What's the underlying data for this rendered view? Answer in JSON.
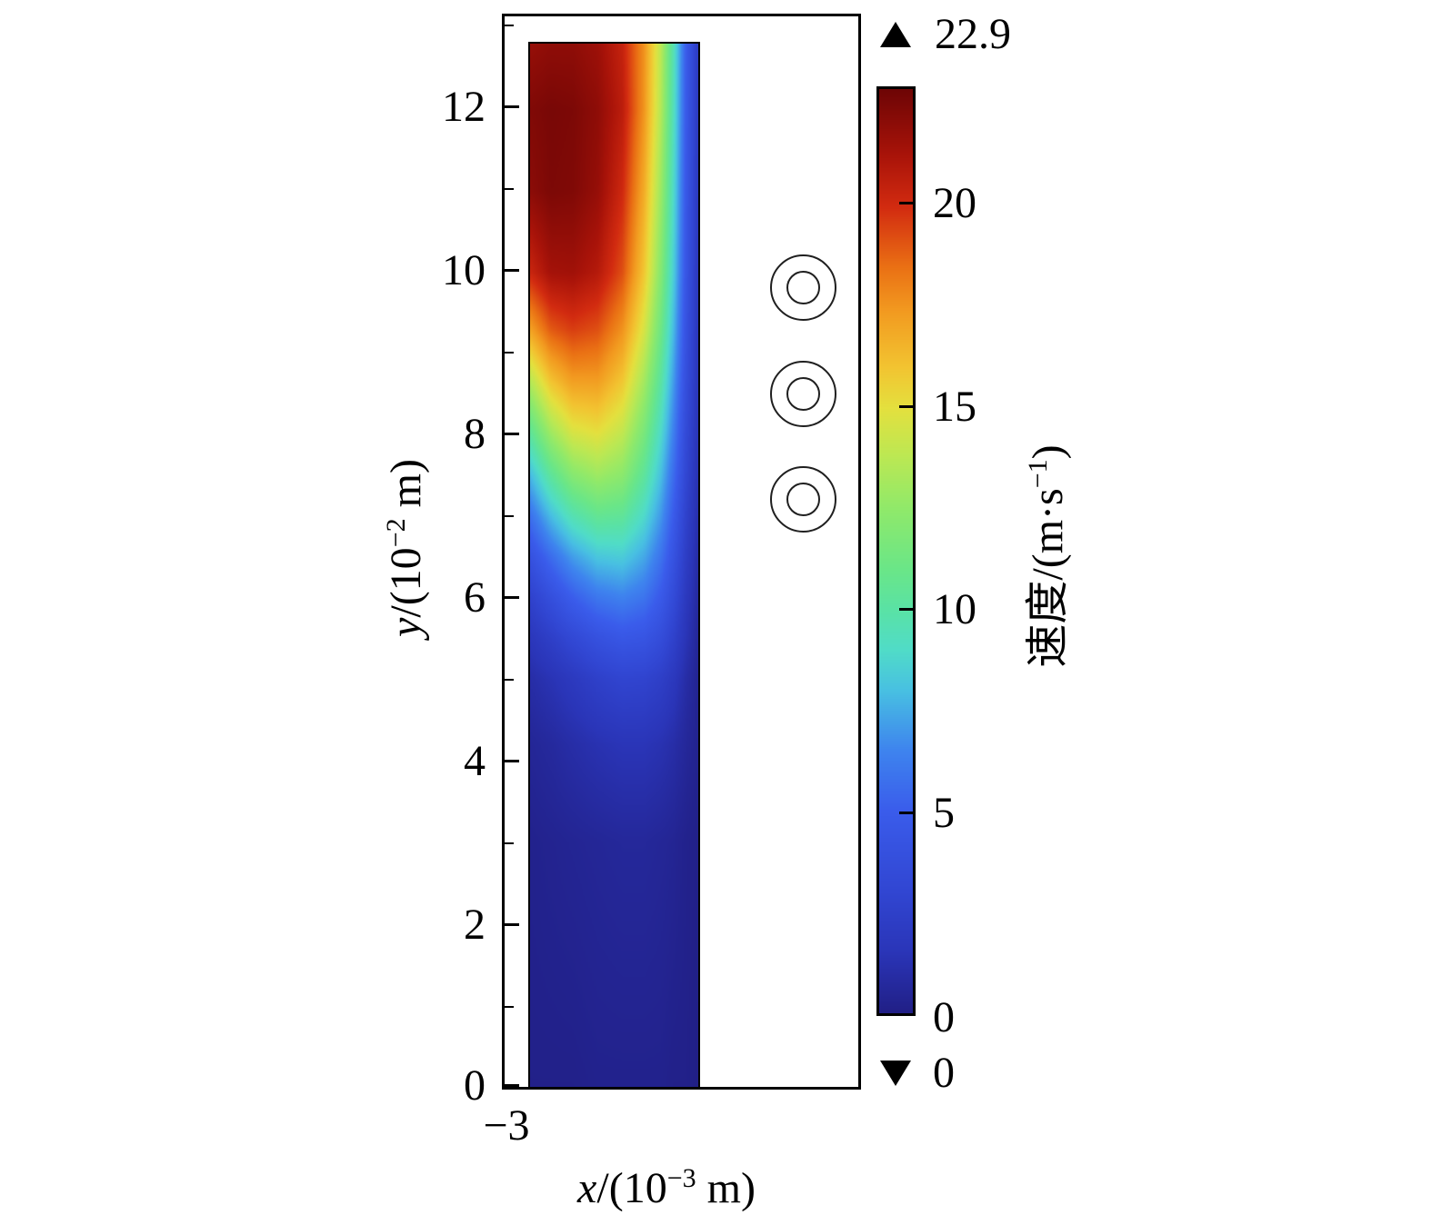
{
  "figure": {
    "y_axis": {
      "label": {
        "var": "y",
        "pre": "/(10",
        "sup": "−2",
        "post": " m)"
      },
      "ticks": [
        "12",
        "10",
        "8",
        "6",
        "4",
        "2",
        "0"
      ]
    },
    "x_axis": {
      "label": {
        "var": "x",
        "pre": "/(10",
        "sup": "−3",
        "post": " m)"
      },
      "tick": "−3"
    },
    "colorbar": {
      "label": {
        "pre": "速度/(m·s",
        "sup": "−1",
        "post": ")"
      },
      "ticks": [
        "20",
        "15",
        "10",
        "5",
        "0"
      ],
      "max_annotation": "22.9",
      "min_annotation": "0"
    }
  },
  "chart_data": {
    "type": "heatmap",
    "title": "",
    "xlabel": "x/(10^−3 m)",
    "ylabel": "y/(10^−2 m)",
    "colorbar_label": "速度/(m·s^−1)",
    "x_ticks": [
      "−3"
    ],
    "y_ticks": [
      0,
      2,
      4,
      6,
      8,
      10,
      12
    ],
    "y_minor_ticks": [
      1,
      3,
      5,
      7,
      9,
      11,
      13
    ],
    "field_extent": {
      "y_min": 0,
      "y_max": 12.8
    },
    "value_range": {
      "min": 0,
      "max": 22.9
    },
    "colorbar_ticks": [
      0,
      5,
      10,
      15,
      20
    ],
    "annotations": {
      "max_marker": "▲",
      "max_value": 22.9,
      "min_marker": "▼",
      "min_value": 0
    },
    "markers": [
      {
        "shape": "double_circle",
        "y": 9.8
      },
      {
        "shape": "double_circle",
        "y": 8.5
      },
      {
        "shape": "double_circle",
        "y": 7.2
      }
    ],
    "colormap": [
      [
        0.0,
        "#211f86"
      ],
      [
        0.066,
        "#2a35b8"
      ],
      [
        0.131,
        "#3146d2"
      ],
      [
        0.218,
        "#3a5ceb"
      ],
      [
        0.284,
        "#3e84ee"
      ],
      [
        0.349,
        "#48c0e2"
      ],
      [
        0.393,
        "#50dcc8"
      ],
      [
        0.437,
        "#5ae2a5"
      ],
      [
        0.48,
        "#6ae688"
      ],
      [
        0.546,
        "#90e96a"
      ],
      [
        0.603,
        "#bce853"
      ],
      [
        0.655,
        "#e4e03e"
      ],
      [
        0.699,
        "#f2c431"
      ],
      [
        0.76,
        "#f29a20"
      ],
      [
        0.808,
        "#ea7014"
      ],
      [
        0.873,
        "#d22b10"
      ],
      [
        0.93,
        "#a81309"
      ],
      [
        1.0,
        "#6e0505"
      ]
    ],
    "grid": {
      "u": [
        0,
        0.12,
        0.25,
        0.4,
        0.55,
        0.68,
        0.78,
        0.86,
        0.93,
        1.0
      ],
      "y": [
        12.8,
        12.0,
        11.0,
        10.0,
        9.3,
        8.7,
        8.1,
        7.5,
        7.0,
        6.5,
        6.0,
        5.5,
        5.0,
        4.2,
        3.0,
        0.0
      ],
      "values": [
        [
          21.8,
          22.0,
          22.0,
          21.6,
          20.4,
          17.6,
          13.8,
          9.4,
          5.0,
          2.2
        ],
        [
          22.4,
          22.6,
          22.5,
          22.0,
          20.7,
          17.5,
          13.6,
          9.2,
          4.9,
          2.1
        ],
        [
          22.1,
          22.5,
          22.4,
          21.8,
          20.1,
          16.8,
          12.9,
          8.8,
          4.7,
          2.0
        ],
        [
          20.3,
          21.4,
          21.5,
          20.9,
          19.2,
          15.9,
          12.1,
          8.3,
          4.5,
          1.9
        ],
        [
          17.2,
          19.0,
          19.6,
          19.2,
          17.6,
          14.6,
          11.2,
          7.7,
          4.2,
          1.8
        ],
        [
          13.9,
          16.2,
          17.4,
          17.4,
          16.0,
          13.2,
          10.2,
          7.0,
          3.9,
          1.7
        ],
        [
          10.8,
          13.3,
          14.9,
          15.3,
          14.2,
          11.8,
          9.1,
          6.3,
          3.5,
          1.6
        ],
        [
          7.9,
          10.3,
          12.1,
          12.9,
          12.3,
          10.3,
          8.0,
          5.5,
          3.1,
          1.4
        ],
        [
          5.8,
          7.9,
          9.6,
          10.6,
          10.4,
          8.9,
          7.0,
          4.8,
          2.7,
          1.2
        ],
        [
          4.1,
          5.6,
          7.1,
          8.2,
          8.4,
          7.4,
          5.9,
          4.1,
          2.3,
          1.0
        ],
        [
          2.7,
          3.8,
          5.0,
          6.0,
          6.4,
          5.9,
          4.8,
          3.4,
          1.9,
          0.8
        ],
        [
          1.7,
          2.4,
          3.2,
          4.0,
          4.5,
          4.3,
          3.6,
          2.6,
          1.5,
          0.6
        ],
        [
          1.0,
          1.4,
          1.9,
          2.5,
          2.9,
          2.8,
          2.4,
          1.8,
          1.0,
          0.4
        ],
        [
          0.5,
          0.7,
          1.0,
          1.3,
          1.5,
          1.5,
          1.3,
          1.0,
          0.6,
          0.3
        ],
        [
          0.2,
          0.3,
          0.4,
          0.5,
          0.6,
          0.6,
          0.5,
          0.4,
          0.2,
          0.1
        ],
        [
          0.1,
          0.1,
          0.1,
          0.2,
          0.2,
          0.2,
          0.2,
          0.1,
          0.1,
          0.0
        ]
      ]
    }
  }
}
